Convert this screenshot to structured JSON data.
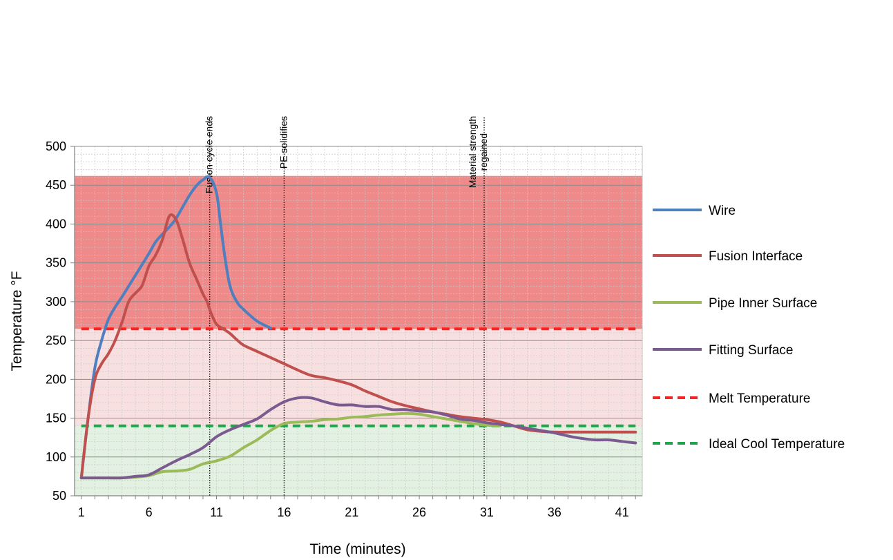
{
  "chart_data": {
    "type": "line",
    "title": "",
    "xlabel": "Time (minutes)",
    "ylabel": "Temperature °F",
    "xlim": [
      1,
      42
    ],
    "ylim": [
      50,
      500
    ],
    "x_ticks": [
      1,
      6,
      11,
      16,
      21,
      26,
      31,
      36,
      41
    ],
    "y_ticks": [
      50,
      100,
      150,
      200,
      250,
      300,
      350,
      400,
      450,
      500
    ],
    "grid": true,
    "legend_position": "right",
    "bands": [
      {
        "from": 50,
        "to": 140,
        "color": "#e2f1e2"
      },
      {
        "from": 140,
        "to": 265,
        "color": "#f9e0e0"
      },
      {
        "from": 265,
        "to": 462,
        "color": "#ef8a8a"
      }
    ],
    "series": [
      {
        "name": "Wire",
        "color": "#4f7fbf",
        "x": [
          1,
          1.5,
          2,
          2.5,
          3,
          3.5,
          4,
          4.5,
          5,
          5.5,
          6,
          6.5,
          7,
          7.5,
          8,
          8.5,
          9,
          9.5,
          10,
          10.5,
          11,
          11.3,
          11.6,
          12,
          12.5,
          13,
          14,
          15
        ],
        "y": [
          73,
          150,
          215,
          250,
          277,
          293,
          306,
          320,
          334,
          348,
          362,
          377,
          387,
          396,
          407,
          422,
          437,
          449,
          457,
          460,
          440,
          400,
          360,
          320,
          300,
          290,
          275,
          266
        ]
      },
      {
        "name": "Fusion Interface",
        "color": "#c0504d",
        "x": [
          1,
          1.5,
          2,
          2.5,
          3,
          3.5,
          4,
          4.5,
          5,
          5.5,
          6,
          6.5,
          7,
          7.5,
          8,
          8.5,
          9,
          9.5,
          10,
          10.3,
          10.6,
          11,
          11.5,
          12,
          12.5,
          13,
          14,
          15,
          16,
          17,
          18,
          19,
          20,
          21,
          22,
          23,
          24,
          25,
          26,
          27,
          28,
          29,
          30,
          31,
          32,
          33,
          34,
          35,
          36,
          37,
          38,
          39,
          40,
          41,
          42
        ],
        "y": [
          73,
          150,
          200,
          220,
          233,
          250,
          273,
          300,
          311,
          321,
          346,
          360,
          380,
          410,
          406,
          380,
          350,
          330,
          310,
          300,
          285,
          271,
          265,
          259,
          251,
          244,
          236,
          228,
          220,
          212,
          205,
          202,
          198,
          193,
          185,
          178,
          171,
          166,
          162,
          158,
          155,
          152,
          150,
          148,
          145,
          140,
          135,
          133,
          132,
          132,
          132,
          132,
          132,
          132,
          132
        ]
      },
      {
        "name": "Pipe Inner Surface",
        "color": "#9bbb59",
        "x": [
          1,
          2,
          3,
          4,
          5,
          6,
          7,
          8,
          9,
          10,
          11,
          12,
          13,
          14,
          15,
          16,
          17,
          18,
          19,
          20,
          21,
          22,
          23,
          24,
          25,
          26,
          27,
          28,
          29,
          30,
          31,
          32
        ],
        "y": [
          73,
          73,
          73,
          73,
          74,
          76,
          81,
          82,
          84,
          91,
          95,
          101,
          112,
          122,
          134,
          143,
          145,
          146,
          148,
          149,
          151,
          152,
          154,
          155,
          156,
          155,
          152,
          149,
          146,
          143,
          141,
          140
        ]
      },
      {
        "name": "Fitting Surface",
        "color": "#7b5a8f",
        "x": [
          1,
          2,
          3,
          4,
          5,
          6,
          7,
          8,
          9,
          10,
          11,
          12,
          13,
          14,
          15,
          16,
          17,
          18,
          19,
          20,
          21,
          22,
          23,
          24,
          25,
          26,
          27,
          28,
          29,
          30,
          31,
          32,
          33,
          34,
          35,
          36,
          37,
          38,
          39,
          40,
          41,
          42
        ],
        "y": [
          73,
          73,
          73,
          73,
          75,
          77,
          86,
          95,
          103,
          112,
          126,
          135,
          142,
          149,
          161,
          171,
          176,
          176,
          171,
          167,
          167,
          165,
          165,
          161,
          161,
          159,
          158,
          154,
          149,
          147,
          144,
          142,
          140,
          137,
          134,
          131,
          127,
          124,
          122,
          122,
          120,
          118
        ]
      },
      {
        "name": "Melt Temperature",
        "color": "#ff2020",
        "dashed": true,
        "x": [
          1,
          42
        ],
        "y": [
          265,
          265
        ]
      },
      {
        "name": "Ideal Cool Temperature",
        "color": "#1ea64a",
        "dashed": true,
        "x": [
          1,
          42
        ],
        "y": [
          140,
          140
        ]
      }
    ],
    "annotations": [
      {
        "x": 10.5,
        "text": "Fusion cycle ends"
      },
      {
        "x": 16,
        "text": "PE solidifies"
      },
      {
        "x": 30.8,
        "text": "Material strength\nregained"
      }
    ]
  }
}
